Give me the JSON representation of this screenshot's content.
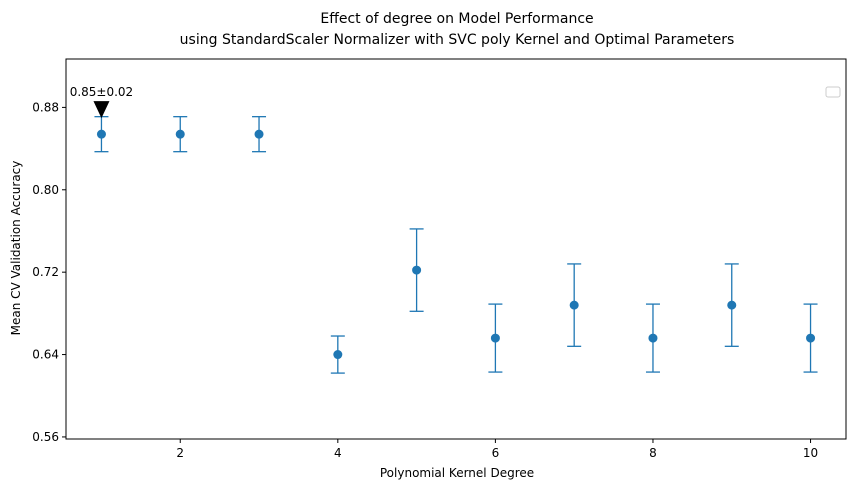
{
  "chart_data": {
    "type": "scatter",
    "title": "Effect of degree on Model Performance",
    "subtitle": "using StandardScaler Normalizer with SVC poly Kernel and Optimal Parameters",
    "xlabel": "Polynomial Kernel Degree",
    "ylabel": "Mean CV Validation Accuracy",
    "xlim": [
      0.55,
      10.45
    ],
    "ylim": [
      0.558,
      0.927
    ],
    "x_ticks": [
      2,
      4,
      6,
      8,
      10
    ],
    "x_tick_labels": [
      "2",
      "4",
      "6",
      "8",
      "10"
    ],
    "y_ticks": [
      0.56,
      0.64,
      0.72,
      0.8,
      0.88
    ],
    "y_tick_labels": [
      "0.56",
      "0.64",
      "0.72",
      "0.80",
      "0.88"
    ],
    "x": [
      1,
      2,
      3,
      4,
      5,
      6,
      7,
      8,
      9,
      10
    ],
    "y": [
      0.854,
      0.854,
      0.854,
      0.64,
      0.722,
      0.656,
      0.688,
      0.656,
      0.688,
      0.656
    ],
    "yerr": [
      0.017,
      0.017,
      0.017,
      0.018,
      0.04,
      0.033,
      0.04,
      0.033,
      0.04,
      0.033
    ],
    "series_color": "#1f77b4",
    "grid": false,
    "legend": "top-right",
    "annotation": {
      "text": "0.85±0.02",
      "x": 1,
      "y": 0.854,
      "marker": "down-triangle"
    }
  }
}
